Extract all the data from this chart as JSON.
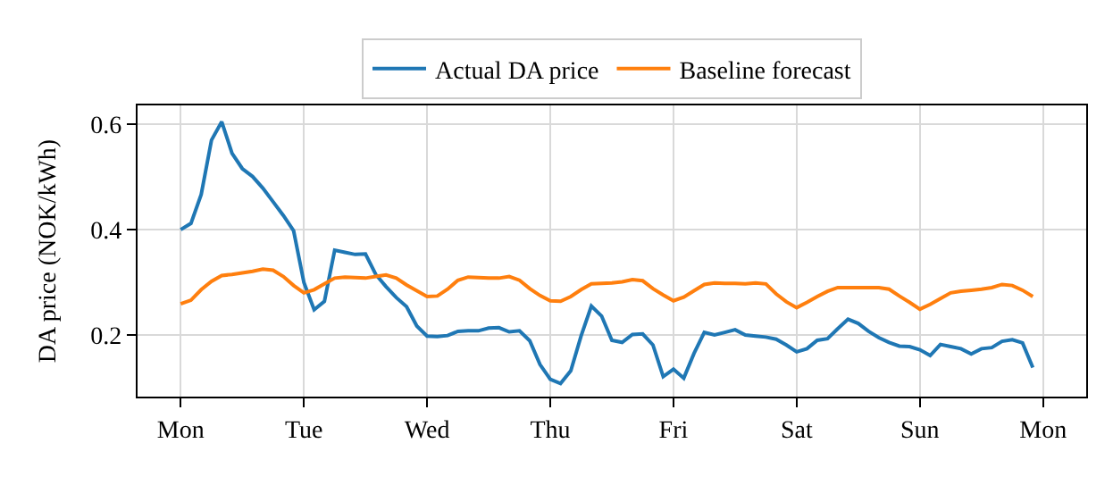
{
  "chart_data": {
    "type": "line",
    "ylabel": "DA price (NOK/kWh)",
    "categories": [
      "Mon",
      null,
      null,
      null,
      null,
      null,
      null,
      null,
      null,
      null,
      null,
      null,
      "Tue",
      null,
      null,
      null,
      null,
      null,
      null,
      null,
      null,
      null,
      null,
      null,
      "Wed",
      null,
      null,
      null,
      null,
      null,
      null,
      null,
      null,
      null,
      null,
      null,
      "Thu",
      null,
      null,
      null,
      null,
      null,
      null,
      null,
      null,
      null,
      null,
      null,
      "Fri",
      null,
      null,
      null,
      null,
      null,
      null,
      null,
      null,
      null,
      null,
      null,
      "Sat",
      null,
      null,
      null,
      null,
      null,
      null,
      null,
      null,
      null,
      null,
      null,
      "Sun",
      null,
      null,
      null,
      null,
      null,
      null,
      null,
      null,
      null,
      null,
      null,
      "Mon"
    ],
    "ylim": [
      0.083,
      0.636
    ],
    "yticks": [
      0.2,
      0.4,
      0.6
    ],
    "grid": true,
    "legend": "top",
    "marker": "none",
    "line_style": "solid",
    "series": [
      {
        "name": "Actual DA price",
        "color": "#1f77b4",
        "values": [
          0.4,
          0.412,
          0.467,
          0.57,
          0.605,
          0.545,
          0.516,
          0.501,
          0.479,
          0.453,
          0.427,
          0.398,
          0.3,
          0.248,
          0.264,
          0.361,
          0.357,
          0.353,
          0.354,
          0.315,
          0.292,
          0.271,
          0.254,
          0.217,
          0.198,
          0.197,
          0.199,
          0.207,
          0.208,
          0.208,
          0.213,
          0.214,
          0.206,
          0.208,
          0.189,
          0.144,
          0.116,
          0.108,
          0.132,
          0.198,
          0.255,
          0.236,
          0.19,
          0.186,
          0.201,
          0.202,
          0.181,
          0.121,
          0.135,
          0.118,
          0.165,
          0.205,
          0.2,
          0.205,
          0.21,
          0.2,
          0.198,
          0.196,
          0.192,
          0.181,
          0.168,
          0.174,
          0.19,
          0.193,
          0.212,
          0.23,
          0.222,
          0.207,
          0.195,
          0.186,
          0.179,
          0.178,
          0.172,
          0.161,
          0.182,
          0.178,
          0.174,
          0.164,
          0.174,
          0.176,
          0.188,
          0.191,
          0.185,
          0.138,
          null
        ]
      },
      {
        "name": "Baseline forecast",
        "color": "#ff7f0e",
        "values": [
          0.259,
          0.266,
          0.286,
          0.302,
          0.313,
          0.315,
          0.318,
          0.321,
          0.325,
          0.323,
          0.311,
          0.294,
          0.28,
          0.286,
          0.297,
          0.308,
          0.31,
          0.309,
          0.308,
          0.311,
          0.314,
          0.308,
          0.295,
          0.284,
          0.273,
          0.274,
          0.287,
          0.304,
          0.31,
          0.309,
          0.308,
          0.308,
          0.311,
          0.304,
          0.288,
          0.275,
          0.265,
          0.264,
          0.273,
          0.286,
          0.297,
          0.298,
          0.299,
          0.301,
          0.305,
          0.303,
          0.288,
          0.276,
          0.265,
          0.272,
          0.284,
          0.296,
          0.299,
          0.298,
          0.298,
          0.297,
          0.299,
          0.297,
          0.278,
          0.263,
          0.252,
          0.262,
          0.273,
          0.283,
          0.29,
          0.29,
          0.29,
          0.29,
          0.29,
          0.287,
          0.274,
          0.262,
          0.249,
          0.258,
          0.269,
          0.28,
          0.283,
          0.285,
          0.287,
          0.29,
          0.296,
          0.294,
          0.285,
          0.273,
          null
        ]
      }
    ]
  }
}
